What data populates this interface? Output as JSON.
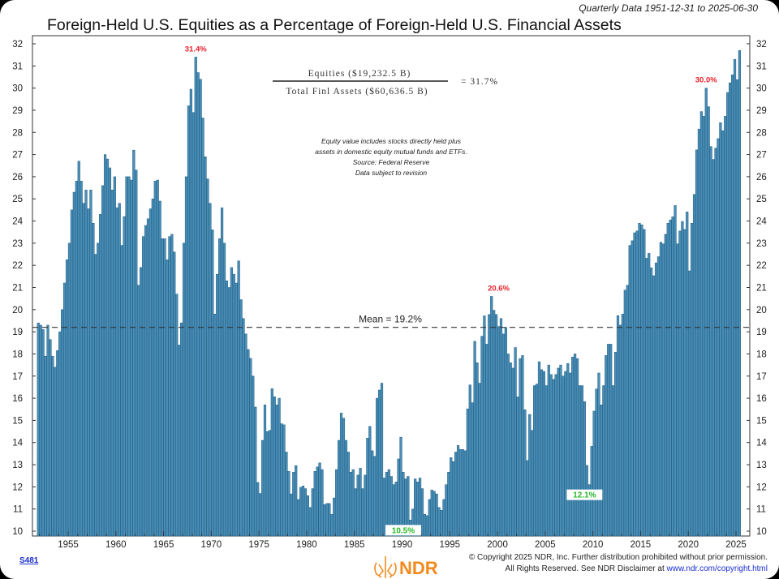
{
  "header": {
    "title": "Foreign-Held U.S. Equities as a Percentage of Foreign-Held U.S. Financial Assets",
    "subtitle": "Quarterly Data 1951-12-31 to 2025-06-30"
  },
  "ratio_box": {
    "numerator": "Equities ($19,232.5 B)",
    "denominator": "Total Finl Assets ($60,636.5 B)",
    "result": "= 31.7%"
  },
  "notes": [
    "Equity value includes stocks directly held plus",
    "assets in domestic equity mutual funds and ETFs.",
    "Source: Federal Reserve",
    "Data subject to revision"
  ],
  "footer": {
    "chart_id": "S481",
    "copyright_line1": "© Copyright 2025 NDR, Inc. Further distribution prohibited without prior permission.",
    "copyright_line2": "All Rights Reserved. See NDR Disclaimer at ",
    "disclaimer_link": "www.ndr.com/copyright.html",
    "logo_text": "NDR",
    "logo_color": "#f28a1e"
  },
  "chart_data": {
    "type": "bar",
    "frequency": "quarterly",
    "start": "1951-12-31",
    "end": "2025-06-30",
    "ylim": [
      10,
      32
    ],
    "y_ticks": [
      "10",
      "11",
      "12",
      "13",
      "14",
      "15",
      "16",
      "17",
      "18",
      "19",
      "20",
      "21",
      "22",
      "23",
      "24",
      "25",
      "26",
      "27",
      "28",
      "29",
      "30",
      "31",
      "32"
    ],
    "x_ticks": [
      "1955",
      "1960",
      "1965",
      "1970",
      "1975",
      "1980",
      "1985",
      "1990",
      "1995",
      "2000",
      "2005",
      "2010",
      "2015",
      "2020",
      "2025"
    ],
    "grid": false,
    "bar_color": "#4a8db5",
    "mean": {
      "value": 19.2,
      "label": "Mean = 19.2%"
    },
    "annotations": [
      {
        "label": "31.4%",
        "date": "1968-06-30",
        "value": 31.4,
        "color": "#e8202a"
      },
      {
        "label": "20.6%",
        "date": "2000-03-31",
        "value": 20.6,
        "color": "#e8202a"
      },
      {
        "label": "30.0%",
        "date": "2021-12-31",
        "value": 30.0,
        "color": "#e8202a"
      },
      {
        "label": "10.5%",
        "date": "1990-03-31",
        "value": 10.5,
        "color": "#22b822"
      },
      {
        "label": "12.1%",
        "date": "2009-03-31",
        "value": 12.1,
        "color": "#22b822"
      }
    ],
    "values": [
      19.4,
      19.3,
      19.1,
      17.9,
      19.3,
      18.65,
      17.9,
      17.4,
      18.15,
      19.0,
      20.0,
      21.2,
      22.25,
      23.0,
      24.5,
      25.3,
      25.8,
      26.7,
      25.8,
      24.8,
      25.4,
      24.55,
      25.4,
      23.9,
      22.5,
      23.0,
      24.3,
      25.6,
      27.0,
      26.8,
      26.4,
      25.4,
      26.0,
      24.6,
      24.8,
      22.9,
      24.2,
      26.0,
      26.0,
      25.85,
      27.2,
      26.3,
      21.1,
      21.9,
      23.3,
      23.8,
      24.1,
      24.55,
      25.0,
      25.8,
      25.85,
      24.9,
      23.2,
      23.2,
      22.25,
      23.3,
      23.4,
      22.6,
      20.7,
      18.4,
      19.4,
      23.0,
      26.0,
      29.2,
      29.95,
      28.9,
      31.4,
      30.7,
      30.4,
      28.65,
      26.9,
      25.9,
      24.8,
      23.6,
      19.8,
      21.6,
      23.2,
      24.6,
      23.0,
      21.3,
      21.0,
      21.9,
      21.6,
      21.2,
      22.2,
      20.45,
      19.6,
      18.9,
      18.2,
      17.8,
      17.0,
      15.6,
      12.2,
      11.7,
      14.1,
      15.7,
      14.5,
      14.55,
      16.43,
      16.07,
      15.7,
      16.0,
      14.85,
      14.8,
      13.57,
      12.7,
      11.68,
      12.66,
      12.96,
      11.43,
      11.98,
      12.04,
      11.92,
      11.6,
      11.07,
      11.92,
      12.7,
      12.9,
      13.08,
      12.78,
      11.2,
      11.25,
      11.25,
      10.76,
      11.5,
      12.78,
      14.1,
      15.33,
      15.1,
      14.1,
      13.57,
      12.66,
      12.78,
      11.92,
      12.53,
      12.84,
      11.92,
      12.53,
      14.2,
      14.73,
      13.63,
      13.38,
      16.0,
      16.37,
      16.68,
      12.4,
      12.66,
      12.78,
      12.47,
      12.1,
      12.22,
      13.26,
      14.24,
      12.66,
      12.36,
      12.47,
      10.5,
      11.0,
      12.36,
      12.22,
      12.4,
      11.92,
      10.76,
      10.7,
      11.43,
      11.86,
      11.8,
      11.68,
      11.07,
      10.94,
      11.43,
      12.1,
      12.66,
      13.32,
      13.14,
      13.57,
      13.87,
      13.69,
      13.69,
      13.63,
      15.52,
      16.6,
      15.8,
      18.57,
      17.6,
      16.68,
      18.8,
      19.72,
      18.44,
      19.78,
      20.6,
      19.97,
      19.78,
      19.24,
      19.6,
      18.9,
      19.2,
      18.0,
      17.6,
      17.36,
      18.29,
      16.06,
      17.79,
      17.93,
      15.48,
      13.19,
      15.27,
      14.55,
      16.57,
      16.64,
      17.65,
      17.29,
      17.21,
      16.57,
      17.5,
      17.07,
      16.85,
      17.07,
      17.36,
      17.5,
      17.0,
      17.21,
      17.57,
      17.14,
      17.86,
      18.0,
      17.79,
      16.57,
      16.57,
      15.85,
      12.97,
      12.1,
      13.83,
      15.42,
      16.42,
      17.14,
      15.7,
      16.57,
      17.93,
      18.44,
      18.44,
      16.57,
      18.08,
      19.73,
      19.3,
      19.8,
      20.88,
      21.1,
      22.9,
      23.11,
      23.47,
      23.55,
      23.9,
      23.83,
      23.62,
      22.32,
      22.54,
      21.89,
      21.53,
      22.11,
      22.39,
      23.04,
      22.97,
      23.4,
      23.9,
      24.05,
      24.19,
      24.7,
      22.97,
      23.55,
      23.98,
      23.62,
      24.41,
      21.75,
      23.9,
      25.2,
      27.21,
      28.15,
      28.94,
      28.73,
      30.0,
      29.16,
      27.36,
      26.78,
      27.29,
      27.72,
      28.44,
      28.08,
      28.73,
      29.8,
      30.24,
      30.6,
      31.3,
      30.38,
      31.7
    ]
  }
}
